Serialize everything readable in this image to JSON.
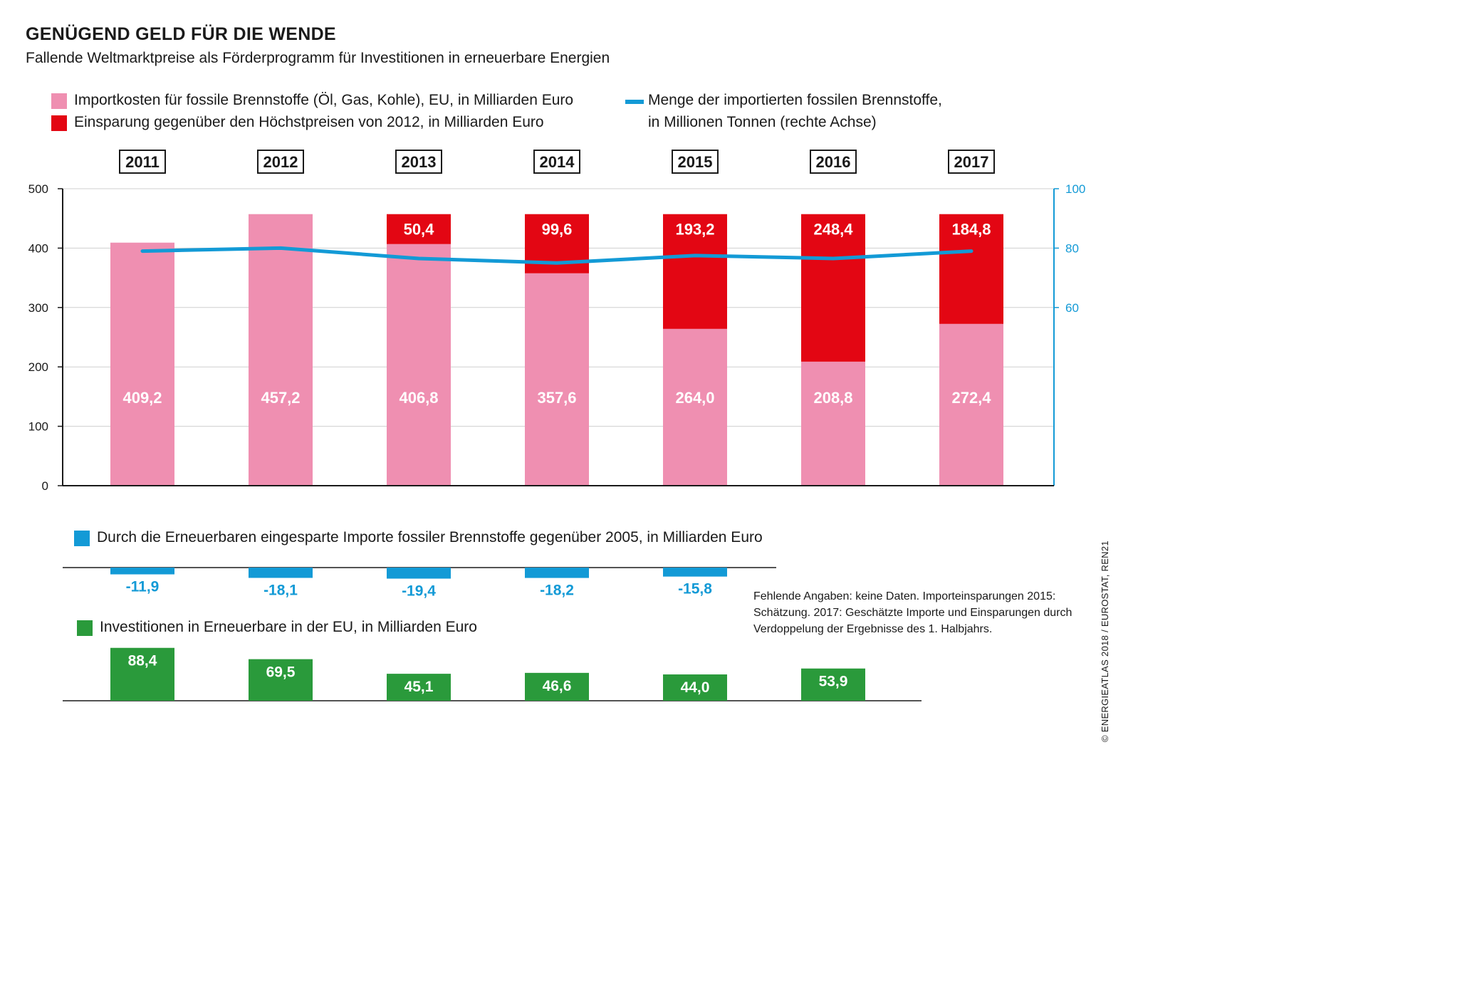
{
  "header": {
    "title": "GENÜGEND GELD FÜR DIE WENDE",
    "subtitle": "Fallende Weltmarktpreise als Förderprogramm für Investitionen in erneuerbare Energien"
  },
  "legend": {
    "import_costs": "Importkosten für fossile Brennstoffe (Öl, Gas, Kohle), EU, in Milliarden Euro",
    "savings": "Einsparung gegenüber den Höchstpreisen von 2012, in Milliarden Euro",
    "quantity_line1": "Menge der importierten fossilen Brennstoffe,",
    "quantity_line2": "in Millionen Tonnen (rechte Achse)",
    "renewable_savings": "Durch die Erneuerbaren eingesparte Importe fossiler Brennstoffe gegenüber 2005, in Milliarden Euro",
    "investments": "Investitionen in Erneuerbare in der EU, in Milliarden Euro"
  },
  "note": "Fehlende Angaben: keine Daten. Importeinsparungen 2015: Schätzung. 2017: Geschätzte Importe und Einsparungen durch Verdoppelung der Ergebnisse des 1. Halbjahrs.",
  "credit": "© ENERGIEATLAS 2018 / EUROSTAT, REN21",
  "colors": {
    "import": "#ef8fb1",
    "savings": "#e30613",
    "line": "#139ad6",
    "renewable": "#139ad6",
    "invest": "#2a9a3b",
    "right_axis": "#139ad6"
  },
  "chart_data": [
    {
      "type": "bar",
      "stacked": true,
      "categories": [
        "2011",
        "2012",
        "2013",
        "2014",
        "2015",
        "2016",
        "2017"
      ],
      "series": [
        {
          "name": "Importkosten für fossile Brennstoffe (Öl, Gas, Kohle), EU, in Milliarden Euro",
          "values": [
            409.2,
            457.2,
            406.8,
            357.6,
            264.0,
            208.8,
            272.4
          ],
          "labels": [
            "409,2",
            "457,2",
            "406,8",
            "357,6",
            "264,0",
            "208,8",
            "272,4"
          ]
        },
        {
          "name": "Einsparung gegenüber den Höchstpreisen von 2012, in Milliarden Euro",
          "values": [
            null,
            null,
            50.4,
            99.6,
            193.2,
            248.4,
            184.8
          ],
          "labels": [
            "",
            "",
            "50,4",
            "99,6",
            "193,2",
            "248,4",
            "184,8"
          ]
        }
      ],
      "ylim": [
        0,
        500
      ],
      "yticks": [
        0,
        100,
        200,
        300,
        400,
        500
      ],
      "grid": true
    },
    {
      "type": "line",
      "axis": "right",
      "categories": [
        "2011",
        "2012",
        "2013",
        "2014",
        "2015",
        "2016",
        "2017"
      ],
      "series": [
        {
          "name": "Menge der importierten fossilen Brennstoffe, in Millionen Tonnen (rechte Achse)",
          "values": [
            79,
            80,
            76.5,
            75,
            77.5,
            76.5,
            79
          ]
        }
      ],
      "ylim": [
        0,
        100
      ],
      "yticks": [
        60,
        80,
        100
      ]
    },
    {
      "type": "bar",
      "categories": [
        "2011",
        "2012",
        "2013",
        "2014",
        "2015",
        "2016",
        "2017"
      ],
      "series": [
        {
          "name": "Durch die Erneuerbaren eingesparte Importe fossiler Brennstoffe gegenüber 2005, in Milliarden Euro",
          "values": [
            -11.9,
            -18.1,
            -19.4,
            -18.2,
            -15.8,
            null,
            null
          ],
          "labels": [
            "-11,9",
            "-18,1",
            "-19,4",
            "-18,2",
            "-15,8",
            "",
            ""
          ]
        }
      ]
    },
    {
      "type": "bar",
      "categories": [
        "2011",
        "2012",
        "2013",
        "2014",
        "2015",
        "2016",
        "2017"
      ],
      "series": [
        {
          "name": "Investitionen in Erneuerbare in der EU, in Milliarden Euro",
          "values": [
            88.4,
            69.5,
            45.1,
            46.6,
            44.0,
            53.9,
            null
          ],
          "labels": [
            "88,4",
            "69,5",
            "45,1",
            "46,6",
            "44,0",
            "53,9",
            ""
          ]
        }
      ]
    }
  ]
}
